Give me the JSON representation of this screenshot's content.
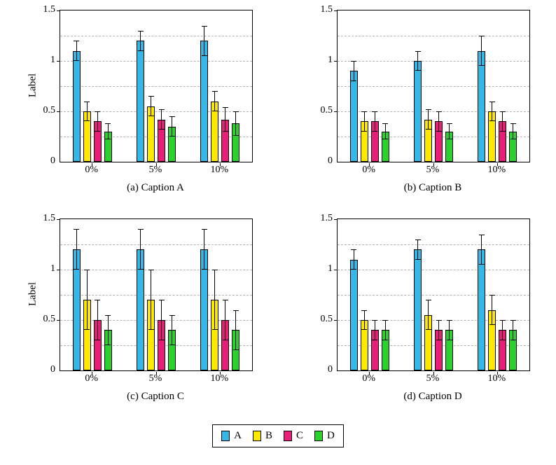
{
  "figure": {
    "ylabel": "Label",
    "ylim": [
      0,
      1.5
    ],
    "yticks": [
      0,
      0.5,
      1,
      1.5
    ],
    "ytick_labels": [
      "0",
      "0.5",
      "1",
      "1.5"
    ],
    "gridlines": [
      0.25,
      0.5,
      0.75,
      1.0,
      1.25
    ],
    "categories": [
      "0%",
      "5%",
      "10%"
    ],
    "series_names": [
      "A",
      "B",
      "C",
      "D"
    ],
    "colors": {
      "A": "#33B8E8",
      "B": "#FFE800",
      "C": "#E91E78",
      "D": "#2BD22B"
    }
  },
  "chart_data": [
    {
      "type": "bar",
      "caption": "(a) Caption A",
      "xlabel": "",
      "ylabel": "Label",
      "categories": [
        "0%",
        "5%",
        "10%"
      ],
      "series": [
        {
          "name": "A",
          "values": [
            1.1,
            1.2,
            1.2
          ],
          "errors": [
            0.1,
            0.1,
            0.15
          ]
        },
        {
          "name": "B",
          "values": [
            0.5,
            0.55,
            0.6
          ],
          "errors": [
            0.1,
            0.1,
            0.1
          ]
        },
        {
          "name": "C",
          "values": [
            0.4,
            0.42,
            0.42
          ],
          "errors": [
            0.1,
            0.1,
            0.12
          ]
        },
        {
          "name": "D",
          "values": [
            0.3,
            0.35,
            0.38
          ],
          "errors": [
            0.08,
            0.1,
            0.12
          ]
        }
      ]
    },
    {
      "type": "bar",
      "caption": "(b) Caption B",
      "xlabel": "",
      "ylabel": "",
      "categories": [
        "0%",
        "5%",
        "10%"
      ],
      "series": [
        {
          "name": "A",
          "values": [
            0.9,
            1.0,
            1.1
          ],
          "errors": [
            0.1,
            0.1,
            0.15
          ]
        },
        {
          "name": "B",
          "values": [
            0.4,
            0.42,
            0.5
          ],
          "errors": [
            0.1,
            0.1,
            0.1
          ]
        },
        {
          "name": "C",
          "values": [
            0.4,
            0.4,
            0.4
          ],
          "errors": [
            0.1,
            0.1,
            0.1
          ]
        },
        {
          "name": "D",
          "values": [
            0.3,
            0.3,
            0.3
          ],
          "errors": [
            0.08,
            0.08,
            0.08
          ]
        }
      ]
    },
    {
      "type": "bar",
      "caption": "(c) Caption C",
      "xlabel": "",
      "ylabel": "Label",
      "categories": [
        "0%",
        "5%",
        "10%"
      ],
      "series": [
        {
          "name": "A",
          "values": [
            1.2,
            1.2,
            1.2
          ],
          "errors": [
            0.2,
            0.2,
            0.2
          ]
        },
        {
          "name": "B",
          "values": [
            0.7,
            0.7,
            0.7
          ],
          "errors": [
            0.3,
            0.3,
            0.3
          ]
        },
        {
          "name": "C",
          "values": [
            0.5,
            0.5,
            0.5
          ],
          "errors": [
            0.2,
            0.2,
            0.2
          ]
        },
        {
          "name": "D",
          "values": [
            0.4,
            0.4,
            0.4
          ],
          "errors": [
            0.15,
            0.15,
            0.2
          ]
        }
      ]
    },
    {
      "type": "bar",
      "caption": "(d) Caption D",
      "xlabel": "",
      "ylabel": "",
      "categories": [
        "0%",
        "5%",
        "10%"
      ],
      "series": [
        {
          "name": "A",
          "values": [
            1.1,
            1.2,
            1.2
          ],
          "errors": [
            0.1,
            0.1,
            0.15
          ]
        },
        {
          "name": "B",
          "values": [
            0.5,
            0.55,
            0.6
          ],
          "errors": [
            0.1,
            0.15,
            0.15
          ]
        },
        {
          "name": "C",
          "values": [
            0.4,
            0.4,
            0.4
          ],
          "errors": [
            0.1,
            0.1,
            0.1
          ]
        },
        {
          "name": "D",
          "values": [
            0.4,
            0.4,
            0.4
          ],
          "errors": [
            0.1,
            0.1,
            0.1
          ]
        }
      ]
    }
  ],
  "legend": {
    "items": [
      {
        "label": "A"
      },
      {
        "label": "B"
      },
      {
        "label": "C"
      },
      {
        "label": "D"
      }
    ]
  }
}
